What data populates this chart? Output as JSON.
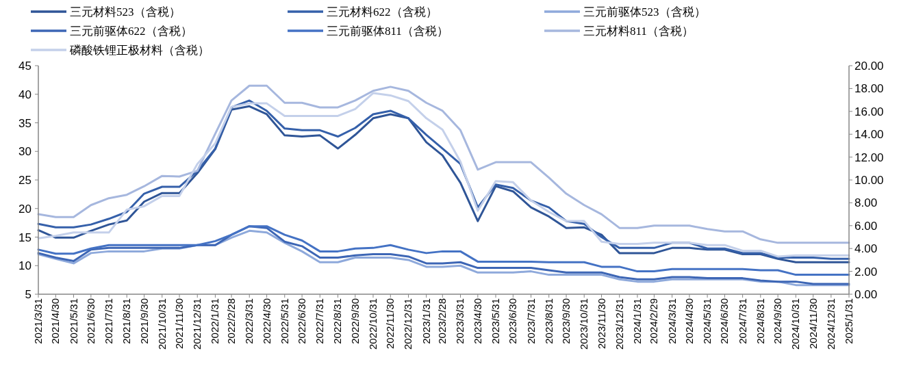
{
  "chart_data": {
    "type": "line",
    "legend": "top",
    "line_style": "solid",
    "marker": "none",
    "grid": false,
    "x": [
      "2021-03-31",
      "2021-04-30",
      "2021-05-31",
      "2021-06-30",
      "2021-07-31",
      "2021-08-31",
      "2021-09-30",
      "2021-10-31",
      "2021-11-30",
      "2021-12-31",
      "2022-01-31",
      "2022-02-28",
      "2022-03-31",
      "2022-04-30",
      "2022-05-31",
      "2022-06-30",
      "2022-07-31",
      "2022-08-31",
      "2022-09-30",
      "2022-10-31",
      "2022-11-30",
      "2022-12-31",
      "2023-01-31",
      "2023-02-28",
      "2023-03-31",
      "2023-04-30",
      "2023-05-31",
      "2023-06-30",
      "2023-07-31",
      "2023-08-31",
      "2023-09-30",
      "2023-10-31",
      "2023-11-30",
      "2023-12-31",
      "2024-01-31",
      "2024-02-29",
      "2024-03-31",
      "2024-04-30",
      "2024-05-31",
      "2024-06-30",
      "2024-07-31",
      "2024-08-31",
      "2024-09-30",
      "2024-10-31",
      "2024-11-30",
      "2024-12-31",
      "2025-01-31"
    ],
    "xlim": [
      "2021-03-31",
      "2025-01-31"
    ],
    "xticks": [
      {
        "value": "2021-03-31",
        "label": "2021/3/31"
      },
      {
        "value": "2021-04-30",
        "label": "2021/4/30"
      },
      {
        "value": "2021-05-31",
        "label": "2021/5/31"
      },
      {
        "value": "2021-06-30",
        "label": "2021/6/30"
      },
      {
        "value": "2021-07-31",
        "label": "2021/7/31"
      },
      {
        "value": "2021-08-31",
        "label": "2021/8/31"
      },
      {
        "value": "2021-09-30",
        "label": "2021/9/30"
      },
      {
        "value": "2021-10-31",
        "label": "2021/10/31"
      },
      {
        "value": "2021-11-30",
        "label": "2021/11/30"
      },
      {
        "value": "2021-12-31",
        "label": "2021/12/31"
      },
      {
        "value": "2022-01-31",
        "label": "2022/1/31"
      },
      {
        "value": "2022-02-28",
        "label": "2022/2/28"
      },
      {
        "value": "2022-03-31",
        "label": "2022/3/31"
      },
      {
        "value": "2022-04-30",
        "label": "2022/4/30"
      },
      {
        "value": "2022-05-31",
        "label": "2022/5/31"
      },
      {
        "value": "2022-06-30",
        "label": "2022/6/30"
      },
      {
        "value": "2022-07-31",
        "label": "2022/7/31"
      },
      {
        "value": "2022-08-31",
        "label": "2022/8/31"
      },
      {
        "value": "2022-09-30",
        "label": "2022/9/30"
      },
      {
        "value": "2022-10-31",
        "label": "2022/10/31"
      },
      {
        "value": "2022-11-30",
        "label": "2022/11/30"
      },
      {
        "value": "2022-12-31",
        "label": "2022/12/31"
      },
      {
        "value": "2023-01-31",
        "label": "2023/1/31"
      },
      {
        "value": "2023-02-28",
        "label": "2023/2/28"
      },
      {
        "value": "2023-03-31",
        "label": "2023/3/31"
      },
      {
        "value": "2023-04-30",
        "label": "2023/4/30"
      },
      {
        "value": "2023-05-31",
        "label": "2023/5/31"
      },
      {
        "value": "2023-06-30",
        "label": "2023/6/30"
      },
      {
        "value": "2023-07-31",
        "label": "2023/7/31"
      },
      {
        "value": "2023-08-31",
        "label": "2023/8/31"
      },
      {
        "value": "2023-09-30",
        "label": "2023/9/30"
      },
      {
        "value": "2023-10-31",
        "label": "2023/10/31"
      },
      {
        "value": "2023-11-30",
        "label": "2023/11/30"
      },
      {
        "value": "2023-12-31",
        "label": "2023/12/31"
      },
      {
        "value": "2024-01-31",
        "label": "2024/1/31"
      },
      {
        "value": "2024-02-29",
        "label": "2024/2/29"
      },
      {
        "value": "2024-03-31",
        "label": "2024/3/31"
      },
      {
        "value": "2024-04-30",
        "label": "2024/4/30"
      },
      {
        "value": "2024-05-31",
        "label": "2024/5/31"
      },
      {
        "value": "2024-06-30",
        "label": "2024/6/30"
      },
      {
        "value": "2024-07-31",
        "label": "2024/7/31"
      },
      {
        "value": "2024-08-31",
        "label": "2024/8/31"
      },
      {
        "value": "2024-09-30",
        "label": "2024/9/30"
      },
      {
        "value": "2024-10-31",
        "label": "2024/10/31"
      },
      {
        "value": "2024-11-30",
        "label": "2024/11/30"
      },
      {
        "value": "2024-12-31",
        "label": "2024/12/31"
      },
      {
        "value": "2025-01-31",
        "label": "2025/1/31"
      }
    ],
    "ylim": [
      5,
      45
    ],
    "yticks": [
      5,
      10,
      15,
      20,
      25,
      30,
      35,
      40,
      45
    ],
    "y2lim": [
      0,
      20
    ],
    "y2ticks": [
      {
        "value": 0,
        "label": "0.00"
      },
      {
        "value": 2,
        "label": "2.00"
      },
      {
        "value": 4,
        "label": "4.00"
      },
      {
        "value": 6,
        "label": "6.00"
      },
      {
        "value": 8,
        "label": "8.00"
      },
      {
        "value": 10,
        "label": "10.00"
      },
      {
        "value": 12,
        "label": "12.00"
      },
      {
        "value": 14,
        "label": "14.00"
      },
      {
        "value": 16,
        "label": "16.00"
      },
      {
        "value": 18,
        "label": "18.00"
      },
      {
        "value": 20,
        "label": "20.00"
      }
    ],
    "series": [
      {
        "name": "三元材料523（含税）",
        "color": "#2f5597",
        "values": [
          16.2,
          14.9,
          14.9,
          16.1,
          17.2,
          17.9,
          21.2,
          22.7,
          22.7,
          26.2,
          30.4,
          37.3,
          37.9,
          36.5,
          32.8,
          32.6,
          32.8,
          30.5,
          32.9,
          35.8,
          36.5,
          35.8,
          31.6,
          29.3,
          24.5,
          17.8,
          23.9,
          23.0,
          20.2,
          18.6,
          16.6,
          16.7,
          15.4,
          12.2,
          12.2,
          12.2,
          13.1,
          13.1,
          12.8,
          12.8,
          12.0,
          12.0,
          11.2,
          10.6,
          10.6,
          10.6,
          10.6
        ]
      },
      {
        "name": "三元材料622（含税）",
        "color": "#3560aa",
        "values": [
          17.3,
          16.7,
          16.7,
          17.2,
          18.2,
          19.4,
          22.6,
          23.8,
          23.8,
          26.6,
          30.5,
          37.7,
          38.9,
          37.1,
          34.0,
          33.7,
          33.7,
          32.6,
          34.1,
          36.5,
          37.1,
          35.8,
          32.9,
          30.5,
          27.8,
          20.2,
          24.2,
          23.6,
          21.4,
          20.2,
          17.8,
          17.3,
          15.0,
          13.1,
          13.1,
          13.1,
          14.0,
          14.0,
          13.0,
          13.0,
          12.2,
          12.2,
          11.4,
          11.4,
          11.4,
          11.2,
          11.2
        ]
      },
      {
        "name": "三元前驱体523（含税）",
        "color": "#8ea9db",
        "values": [
          12.0,
          11.2,
          10.4,
          12.2,
          12.5,
          12.5,
          12.5,
          13.0,
          13.0,
          13.6,
          13.6,
          14.9,
          16.1,
          15.8,
          14.0,
          12.5,
          10.6,
          10.6,
          11.4,
          11.4,
          11.4,
          11.0,
          9.8,
          9.8,
          10.0,
          8.8,
          8.8,
          8.8,
          9.0,
          8.4,
          8.4,
          8.4,
          8.4,
          7.6,
          7.2,
          7.2,
          7.6,
          7.6,
          7.6,
          7.6,
          7.6,
          7.2,
          7.2,
          6.6,
          6.6,
          6.6,
          6.6
        ]
      },
      {
        "name": "三元前驱体622（含税）",
        "color": "#3d66b5",
        "values": [
          12.2,
          11.4,
          10.8,
          12.8,
          13.1,
          13.1,
          13.1,
          13.1,
          13.1,
          13.6,
          13.6,
          15.4,
          16.9,
          16.6,
          14.2,
          13.4,
          11.4,
          11.4,
          11.8,
          12.0,
          12.0,
          11.6,
          10.4,
          10.4,
          10.6,
          9.6,
          9.6,
          9.6,
          9.6,
          9.2,
          8.8,
          8.8,
          8.8,
          8.0,
          7.6,
          7.6,
          8.0,
          8.0,
          7.8,
          7.8,
          7.8,
          7.4,
          7.2,
          7.2,
          6.8,
          6.8,
          6.8
        ]
      },
      {
        "name": "三元前驱体811（含税）",
        "color": "#4472c4",
        "values": [
          12.8,
          12.1,
          12.1,
          13.0,
          13.6,
          13.6,
          13.6,
          13.6,
          13.6,
          13.6,
          14.3,
          15.4,
          16.9,
          16.9,
          15.4,
          14.4,
          12.5,
          12.5,
          13.0,
          13.1,
          13.6,
          12.8,
          12.2,
          12.5,
          12.5,
          10.7,
          10.7,
          10.7,
          10.7,
          10.6,
          10.6,
          10.6,
          9.8,
          9.8,
          9.0,
          9.0,
          9.4,
          9.4,
          9.4,
          9.4,
          9.4,
          9.2,
          9.2,
          8.4,
          8.4,
          8.4,
          8.4
        ]
      },
      {
        "name": "三元材料811（含税）",
        "color": "#a6b7de",
        "values": [
          19.0,
          18.5,
          18.5,
          20.6,
          21.8,
          22.4,
          23.9,
          25.7,
          25.6,
          26.6,
          33.1,
          38.9,
          41.5,
          41.5,
          38.5,
          38.5,
          37.7,
          37.7,
          38.9,
          40.6,
          41.3,
          40.6,
          38.5,
          37.1,
          33.7,
          26.8,
          28.1,
          28.1,
          28.1,
          25.4,
          22.6,
          20.6,
          19.0,
          16.6,
          16.6,
          17.0,
          17.0,
          17.0,
          16.4,
          16.0,
          16.0,
          14.6,
          14.0,
          14.0,
          14.0,
          14.0,
          14.0
        ]
      },
      {
        "name": "磷酸铁锂正极材料（含税）",
        "color": "#c4d0ea",
        "axis": "y2",
        "values": [
          4.9,
          5.1,
          5.4,
          5.4,
          5.4,
          7.4,
          7.7,
          8.6,
          8.6,
          11.4,
          13.2,
          16.4,
          16.7,
          16.7,
          15.6,
          15.6,
          15.6,
          15.6,
          16.2,
          17.6,
          17.4,
          16.9,
          15.4,
          14.4,
          11.6,
          7.3,
          9.9,
          9.8,
          8.2,
          7.2,
          6.4,
          6.4,
          4.6,
          4.4,
          4.4,
          4.5,
          4.5,
          4.5,
          4.3,
          4.3,
          3.8,
          3.8,
          3.3,
          3.4,
          3.4,
          3.4,
          3.4
        ]
      }
    ]
  }
}
